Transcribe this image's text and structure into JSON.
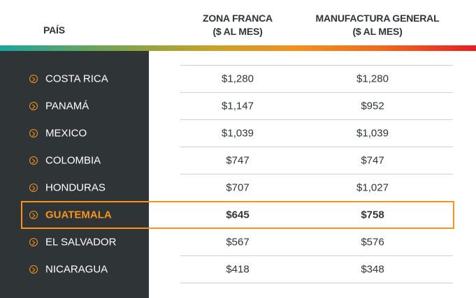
{
  "header": {
    "country": "PAÍS",
    "columns": [
      [
        "ZONA FRANCA",
        "($ AL MES)"
      ],
      [
        "MANUFACTURA GENERAL",
        "($ AL MES)"
      ]
    ]
  },
  "table": {
    "rows": [
      [
        "COSTA RICA",
        "$1,280",
        "$1,280"
      ],
      [
        "PANAMÁ",
        "$1,147",
        "$952"
      ],
      [
        "MEXICO",
        "$1,039",
        "$1,039"
      ],
      [
        "COLOMBIA",
        "$747",
        "$747"
      ],
      [
        "HONDURAS",
        "$707",
        "$1,027"
      ],
      [
        "GUATEMALA",
        "$645",
        "$758"
      ],
      [
        "EL SALVADOR",
        "$567",
        "$576"
      ],
      [
        "NICARAGUA",
        "$418",
        "$348"
      ]
    ],
    "highlight_row": 5
  }
}
